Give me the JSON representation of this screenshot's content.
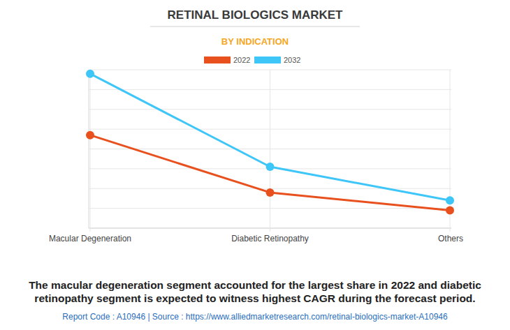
{
  "chart_data": {
    "type": "line",
    "title": "RETINAL BIOLOGICS MARKET",
    "subtitle": "BY INDICATION",
    "categories": [
      "Macular Degeneration",
      "Diabetic Retinopathy",
      "Others"
    ],
    "series": [
      {
        "name": "2022",
        "color": "#e8501e",
        "marker": "circle",
        "values": [
          4.7,
          1.8,
          0.9
        ]
      },
      {
        "name": "2032",
        "color": "#3ec6f8",
        "marker": "circle",
        "values": [
          7.8,
          3.1,
          1.4
        ]
      }
    ],
    "ylim": [
      0,
      8
    ],
    "yticks": [
      0,
      1,
      2,
      3,
      4,
      5,
      6,
      7,
      8
    ],
    "grid": true,
    "legend": "top",
    "tick_labels": "x",
    "caption": [
      "The macular degeneration segment accounted for the largest share in 2022 and diabetic",
      "retinopathy segment is expected to witness highest CAGR during the forecast period."
    ],
    "footer": "Report Code : A10946  |  Source : https://www.alliedmarketresearch.com/retinal-biologics-market-A10946"
  }
}
